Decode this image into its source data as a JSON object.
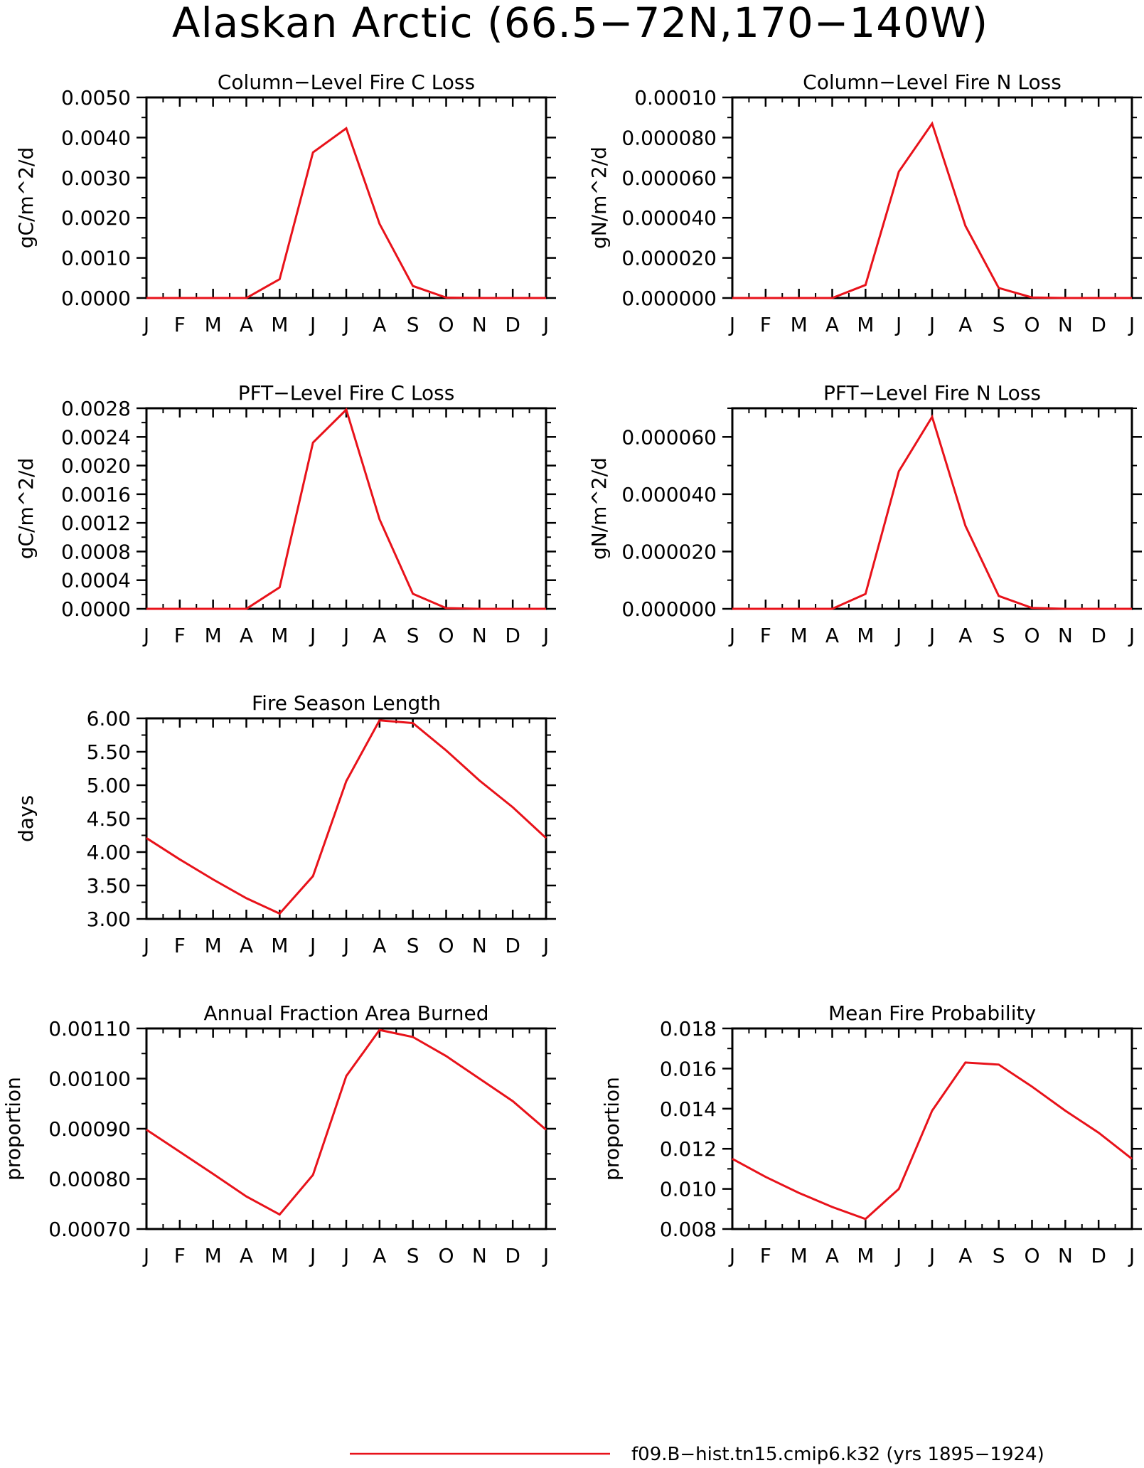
{
  "figure": {
    "title": "Alaskan Arctic (66.5−72N,170−140W)",
    "line_color": "#e8121a",
    "legend": {
      "label": "f09.B−hist.tn15.cmip6.k32 (yrs 1895−1924)"
    }
  },
  "chart_data": [
    {
      "type": "line",
      "title": "Column−Level Fire C Loss",
      "ylabel": "gC/m^2/d",
      "categories": [
        "J",
        "F",
        "M",
        "A",
        "M",
        "J",
        "J",
        "A",
        "S",
        "O",
        "N",
        "D",
        "J"
      ],
      "ylim": [
        0,
        0.005
      ],
      "yticks": [
        0,
        0.001,
        0.002,
        0.003,
        0.004,
        0.005
      ],
      "ytick_labels": [
        "0.0000",
        "0.0010",
        "0.0020",
        "0.0030",
        "0.0040",
        "0.0050"
      ],
      "series": [
        {
          "values": [
            0,
            0,
            0,
            0,
            0.00047,
            0.00363,
            0.00423,
            0.00185,
            0.0003,
            1e-05,
            0,
            0,
            0
          ]
        }
      ]
    },
    {
      "type": "line",
      "title": "Column−Level Fire N Loss",
      "ylabel": "gN/m^2/d",
      "categories": [
        "J",
        "F",
        "M",
        "A",
        "M",
        "J",
        "J",
        "A",
        "S",
        "O",
        "N",
        "D",
        "J"
      ],
      "ylim": [
        0,
        0.0001
      ],
      "yticks": [
        0,
        2e-05,
        4e-05,
        6e-05,
        8e-05,
        0.0001
      ],
      "ytick_labels": [
        "0.000000",
        "0.000020",
        "0.000040",
        "0.000060",
        "0.000080",
        "0.00010"
      ],
      "series": [
        {
          "values": [
            0,
            0,
            0,
            0,
            6.5e-06,
            6.3e-05,
            8.7e-05,
            3.6e-05,
            5e-06,
            3e-07,
            0,
            0,
            0
          ]
        }
      ]
    },
    {
      "type": "line",
      "title": "PFT−Level Fire C Loss",
      "ylabel": "gC/m^2/d",
      "categories": [
        "J",
        "F",
        "M",
        "A",
        "M",
        "J",
        "J",
        "A",
        "S",
        "O",
        "N",
        "D",
        "J"
      ],
      "ylim": [
        0,
        0.0028
      ],
      "yticks": [
        0,
        0.0004,
        0.0008,
        0.0012,
        0.0016,
        0.002,
        0.0024,
        0.0028
      ],
      "ytick_labels": [
        "0.0000",
        "0.0004",
        "0.0008",
        "0.0012",
        "0.0016",
        "0.0020",
        "0.0024",
        "0.0028"
      ],
      "series": [
        {
          "values": [
            0,
            0,
            0,
            0,
            0.0003,
            0.00232,
            0.00278,
            0.00125,
            0.00021,
            1e-05,
            0,
            0,
            0
          ]
        }
      ]
    },
    {
      "type": "line",
      "title": "PFT−Level Fire N Loss",
      "ylabel": "gN/m^2/d",
      "categories": [
        "J",
        "F",
        "M",
        "A",
        "M",
        "J",
        "J",
        "A",
        "S",
        "O",
        "N",
        "D",
        "J"
      ],
      "ylim": [
        0,
        7e-05
      ],
      "yticks": [
        0,
        2e-05,
        4e-05,
        6e-05
      ],
      "ytick_labels": [
        "0.000000",
        "0.000020",
        "0.000040",
        "0.000060"
      ],
      "series": [
        {
          "values": [
            0,
            0,
            0,
            0,
            5.2e-06,
            4.8e-05,
            6.7e-05,
            2.9e-05,
            4.5e-06,
            3e-07,
            0,
            0,
            0
          ]
        }
      ]
    },
    {
      "type": "line",
      "title": "Fire Season Length",
      "ylabel": "days",
      "categories": [
        "J",
        "F",
        "M",
        "A",
        "M",
        "J",
        "J",
        "A",
        "S",
        "O",
        "N",
        "D",
        "J"
      ],
      "ylim": [
        3.0,
        6.0
      ],
      "yticks": [
        3.0,
        3.5,
        4.0,
        4.5,
        5.0,
        5.5,
        6.0
      ],
      "ytick_labels": [
        "3.00",
        "3.50",
        "4.00",
        "4.50",
        "5.00",
        "5.50",
        "6.00"
      ],
      "series": [
        {
          "values": [
            4.21,
            3.89,
            3.59,
            3.31,
            3.08,
            3.64,
            5.06,
            5.97,
            5.93,
            5.52,
            5.07,
            4.67,
            4.21
          ]
        }
      ]
    },
    {
      "type": "line",
      "title": "Annual Fraction Area Burned",
      "ylabel": "proportion",
      "categories": [
        "J",
        "F",
        "M",
        "A",
        "M",
        "J",
        "J",
        "A",
        "S",
        "O",
        "N",
        "D",
        "J"
      ],
      "ylim": [
        0.0007,
        0.0011
      ],
      "yticks": [
        0.0007,
        0.0008,
        0.0009,
        0.001,
        0.0011
      ],
      "ytick_labels": [
        "0.00070",
        "0.00080",
        "0.00090",
        "0.00100",
        "0.00110"
      ],
      "series": [
        {
          "values": [
            0.000898,
            0.000854,
            0.00081,
            0.000765,
            0.000729,
            0.000808,
            0.001005,
            0.001097,
            0.001083,
            0.001045,
            0.001,
            0.000955,
            0.000898
          ]
        }
      ]
    },
    {
      "type": "line",
      "title": "Mean Fire Probability",
      "ylabel": "proportion",
      "categories": [
        "J",
        "F",
        "M",
        "A",
        "M",
        "J",
        "J",
        "A",
        "S",
        "O",
        "N",
        "D",
        "J"
      ],
      "ylim": [
        0.008,
        0.018
      ],
      "yticks": [
        0.008,
        0.01,
        0.012,
        0.014,
        0.016,
        0.018
      ],
      "ytick_labels": [
        "0.008",
        "0.010",
        "0.012",
        "0.014",
        "0.016",
        "0.018"
      ],
      "series": [
        {
          "values": [
            0.0115,
            0.0106,
            0.0098,
            0.0091,
            0.0085,
            0.01,
            0.0139,
            0.0163,
            0.0162,
            0.0151,
            0.0139,
            0.0128,
            0.0115
          ]
        }
      ]
    }
  ]
}
